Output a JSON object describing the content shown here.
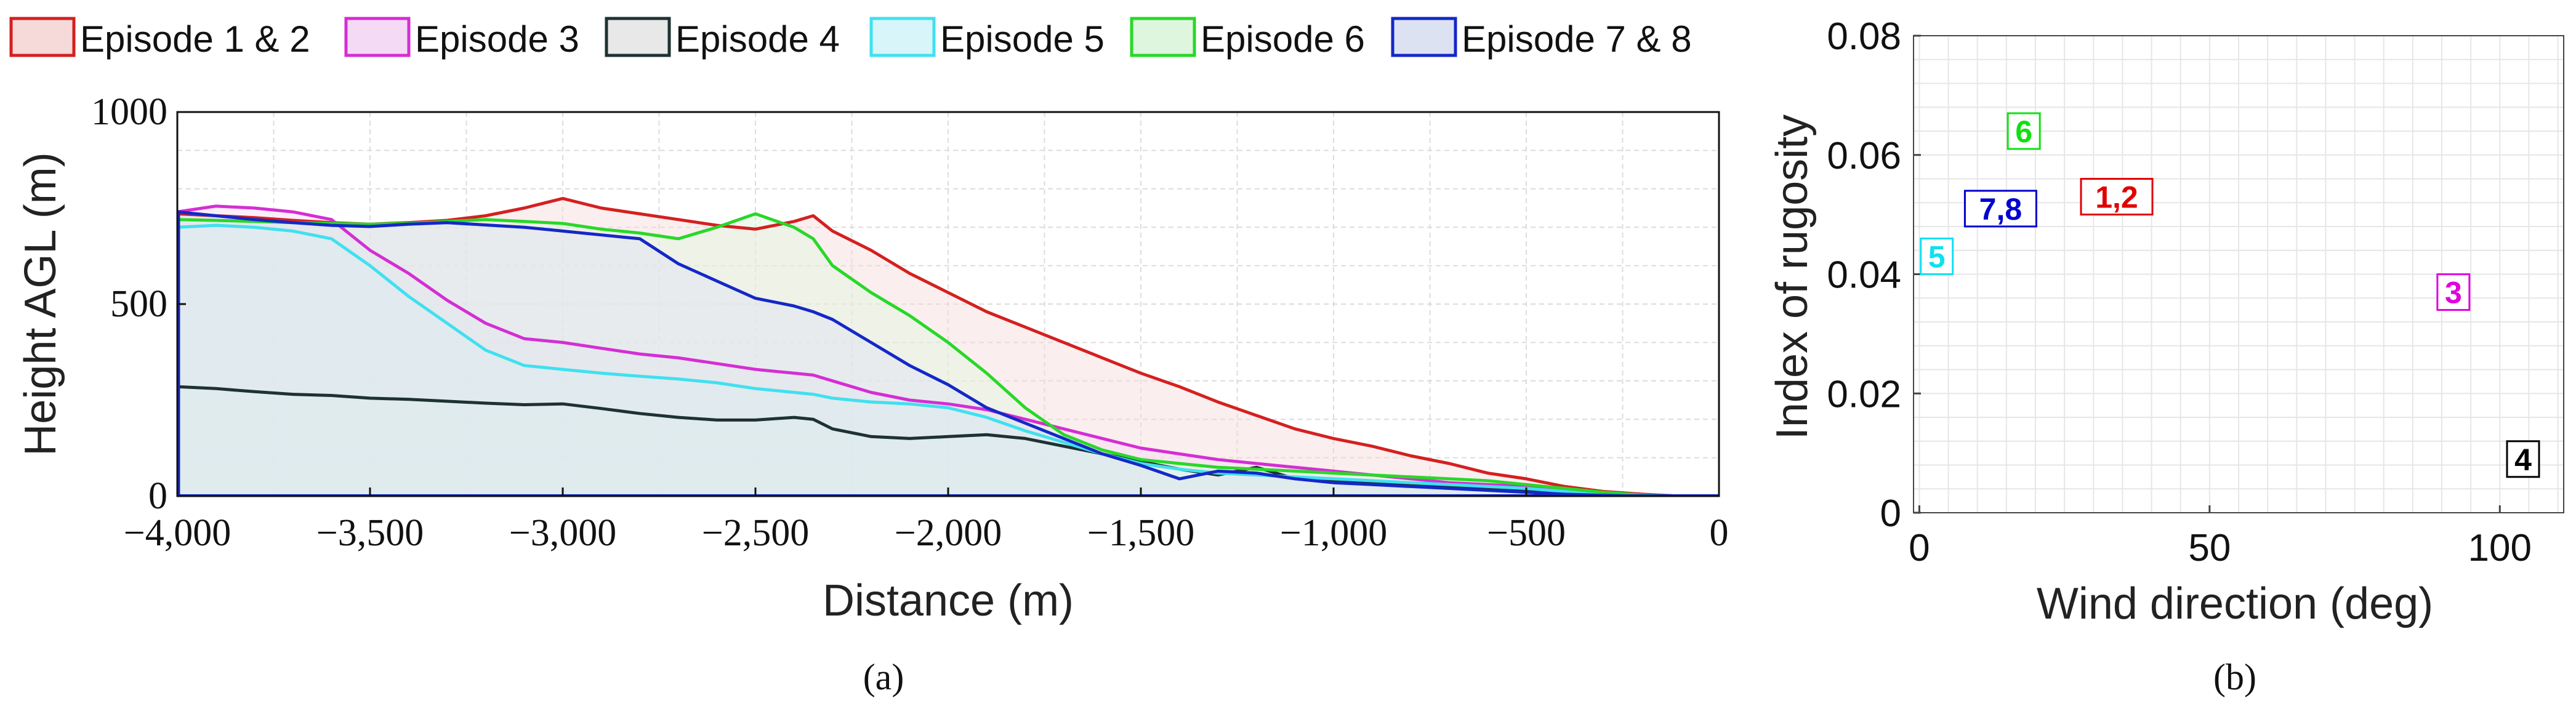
{
  "chart_data": [
    {
      "type": "area",
      "panel_label": "(a)",
      "xlabel": "Distance (m)",
      "ylabel": "Height AGL (m)",
      "xlim": [
        -4000,
        0
      ],
      "ylim": [
        0,
        1000
      ],
      "grid": true,
      "legend_position": "top",
      "x_ticks": [
        -4000,
        -3500,
        -3000,
        -2500,
        -2000,
        -1500,
        -1000,
        -500,
        0
      ],
      "x_tick_labels": [
        "−4,000",
        "−3,500",
        "−3,000",
        "−2,500",
        "−2,000",
        "−1,500",
        "−1,000",
        "−500",
        "0"
      ],
      "y_ticks": [
        0,
        500,
        1000
      ],
      "y_tick_labels": [
        "0",
        "500",
        "1000"
      ],
      "x": [
        -4000,
        -3900,
        -3800,
        -3700,
        -3600,
        -3500,
        -3400,
        -3300,
        -3200,
        -3100,
        -3000,
        -2900,
        -2800,
        -2700,
        -2600,
        -2500,
        -2400,
        -2350,
        -2300,
        -2200,
        -2100,
        -2000,
        -1900,
        -1800,
        -1700,
        -1600,
        -1500,
        -1400,
        -1300,
        -1200,
        -1100,
        -1000,
        -900,
        -800,
        -700,
        -600,
        -500,
        -400,
        -300,
        -200,
        -100,
        0
      ],
      "series": [
        {
          "name": "Episode 1 & 2",
          "color": "#d42020",
          "fill": "#f6dada",
          "values": [
            735,
            730,
            725,
            718,
            712,
            708,
            712,
            718,
            730,
            750,
            775,
            750,
            735,
            720,
            705,
            695,
            715,
            730,
            690,
            640,
            580,
            530,
            480,
            440,
            400,
            360,
            320,
            285,
            245,
            210,
            175,
            150,
            130,
            105,
            85,
            60,
            45,
            25,
            12,
            5,
            0,
            0
          ]
        },
        {
          "name": "Episode 3",
          "color": "#d42ed4",
          "fill": "#f5daf5",
          "values": [
            740,
            755,
            750,
            740,
            720,
            640,
            580,
            510,
            450,
            410,
            400,
            385,
            370,
            360,
            345,
            330,
            320,
            315,
            300,
            270,
            250,
            240,
            225,
            200,
            175,
            150,
            125,
            110,
            95,
            85,
            75,
            65,
            55,
            45,
            35,
            30,
            25,
            15,
            5,
            2,
            0,
            0
          ]
        },
        {
          "name": "Episode 4",
          "color": "#1e3232",
          "fill": "#e8e8e8",
          "values": [
            285,
            280,
            272,
            265,
            262,
            255,
            252,
            247,
            242,
            238,
            240,
            228,
            215,
            205,
            198,
            198,
            205,
            200,
            175,
            155,
            150,
            155,
            160,
            150,
            130,
            110,
            90,
            70,
            55,
            75,
            45,
            40,
            35,
            30,
            25,
            20,
            15,
            10,
            5,
            2,
            0,
            0
          ]
        },
        {
          "name": "Episode 5",
          "color": "#40e0f0",
          "fill": "#d8f6fa",
          "values": [
            700,
            705,
            700,
            690,
            670,
            600,
            520,
            450,
            380,
            340,
            330,
            320,
            312,
            305,
            295,
            280,
            270,
            265,
            255,
            245,
            240,
            230,
            205,
            170,
            140,
            110,
            85,
            70,
            60,
            55,
            50,
            45,
            40,
            35,
            30,
            25,
            20,
            12,
            5,
            2,
            0,
            0
          ]
        },
        {
          "name": "Episode 6",
          "color": "#28d828",
          "fill": "#ddf6dd",
          "values": [
            720,
            718,
            715,
            712,
            710,
            708,
            710,
            715,
            720,
            715,
            710,
            695,
            685,
            670,
            700,
            735,
            700,
            670,
            600,
            530,
            470,
            400,
            320,
            230,
            160,
            120,
            95,
            85,
            75,
            70,
            65,
            60,
            55,
            50,
            45,
            40,
            30,
            20,
            10,
            3,
            0,
            0
          ]
        },
        {
          "name": "Episode 7 & 8",
          "color": "#1428c8",
          "fill": "#dde2f3",
          "values": [
            740,
            730,
            720,
            712,
            705,
            702,
            708,
            712,
            706,
            700,
            690,
            680,
            670,
            605,
            560,
            515,
            495,
            480,
            460,
            400,
            340,
            290,
            230,
            190,
            150,
            110,
            80,
            45,
            65,
            60,
            45,
            35,
            30,
            25,
            20,
            15,
            10,
            5,
            2,
            0,
            0,
            0
          ]
        }
      ]
    },
    {
      "type": "scatter",
      "panel_label": "(b)",
      "xlabel": "Wind direction (deg)",
      "ylabel": "Index of rugosity",
      "xlim": [
        -1,
        111
      ],
      "ylim": [
        0,
        0.08
      ],
      "grid": true,
      "x_ticks": [
        0,
        50,
        100
      ],
      "x_tick_labels": [
        "0",
        "50",
        "100"
      ],
      "y_ticks": [
        0,
        0.02,
        0.04,
        0.06,
        0.08
      ],
      "y_tick_labels": [
        "0",
        "0.02",
        "0.04",
        "0.06",
        "0.08"
      ],
      "points": [
        {
          "label": "1,2",
          "x": 34,
          "y": 0.053,
          "color": "#e00000"
        },
        {
          "label": "3",
          "x": 92,
          "y": 0.037,
          "color": "#e000e0"
        },
        {
          "label": "4",
          "x": 104,
          "y": 0.009,
          "color": "#000000"
        },
        {
          "label": "5",
          "x": 3,
          "y": 0.043,
          "color": "#10e0f0"
        },
        {
          "label": "6",
          "x": 18,
          "y": 0.064,
          "color": "#10e010"
        },
        {
          "label": "7,8",
          "x": 14,
          "y": 0.051,
          "color": "#0000d0"
        }
      ]
    }
  ]
}
